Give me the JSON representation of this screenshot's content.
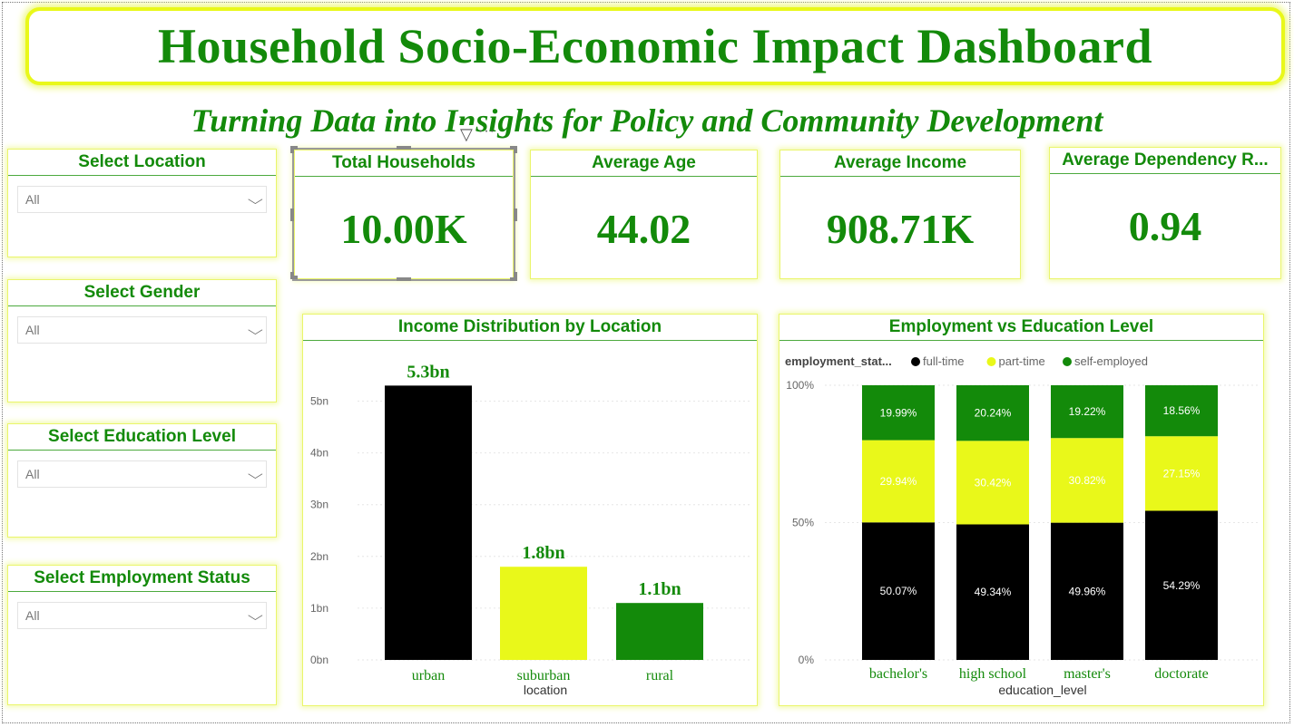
{
  "header": {
    "title": "Household Socio-Economic Impact Dashboard",
    "subtitle": "Turning Data into Insights for Policy and Community Development"
  },
  "slicers": [
    {
      "title": "Select Location",
      "value": "All"
    },
    {
      "title": "Select Gender",
      "value": "All"
    },
    {
      "title": "Select Education Level",
      "value": "All"
    },
    {
      "title": "Select Employment Status",
      "value": "All"
    }
  ],
  "kpis": [
    {
      "title": "Total Households",
      "value": "10.00K"
    },
    {
      "title": "Average Age",
      "value": "44.02"
    },
    {
      "title": "Average Income",
      "value": "908.71K"
    },
    {
      "title": "Average Dependency R...",
      "value": "0.94"
    }
  ],
  "icons": {
    "filter": "filter-icon",
    "more": "more-options-icon",
    "chevron": "chevron-down-icon"
  },
  "colors": {
    "accent": "#138a0a",
    "highlight": "#e9f81a",
    "black": "#000000"
  },
  "chart_data": [
    {
      "type": "bar",
      "title": "Income Distribution by Location",
      "xlabel": "location",
      "ylabel": "",
      "categories": [
        "urban",
        "suburban",
        "rural"
      ],
      "values": [
        5.3,
        1.8,
        1.1
      ],
      "value_labels": [
        "5.3bn",
        "1.8bn",
        "1.1bn"
      ],
      "colors": [
        "#000000",
        "#e9f81a",
        "#138a0a"
      ],
      "yticks": [
        "0bn",
        "1bn",
        "2bn",
        "3bn",
        "4bn",
        "5bn"
      ],
      "ylim": [
        0,
        5.3
      ],
      "grid": true
    },
    {
      "type": "bar",
      "stacked": "100%",
      "title": "Employment vs Education Level",
      "xlabel": "education_level",
      "legend_title": "employment_stat...",
      "categories": [
        "bachelor's",
        "high school",
        "master's",
        "doctorate"
      ],
      "series": [
        {
          "name": "full-time",
          "color": "#000000",
          "values": [
            50.07,
            49.34,
            49.96,
            54.29
          ],
          "labels": [
            "50.07%",
            "49.34%",
            "49.96%",
            "54.29%"
          ]
        },
        {
          "name": "part-time",
          "color": "#e9f81a",
          "values": [
            29.94,
            30.42,
            30.82,
            27.15
          ],
          "labels": [
            "29.94%",
            "30.42%",
            "30.82%",
            "27.15%"
          ]
        },
        {
          "name": "self-employed",
          "color": "#138a0a",
          "values": [
            19.99,
            20.24,
            19.22,
            18.56
          ],
          "labels": [
            "19.99%",
            "20.24%",
            "19.22%",
            "18.56%"
          ]
        }
      ],
      "yticks": [
        "0%",
        "50%",
        "100%"
      ],
      "ylim": [
        0,
        100
      ],
      "legend_position": "top-left",
      "grid": true
    }
  ]
}
